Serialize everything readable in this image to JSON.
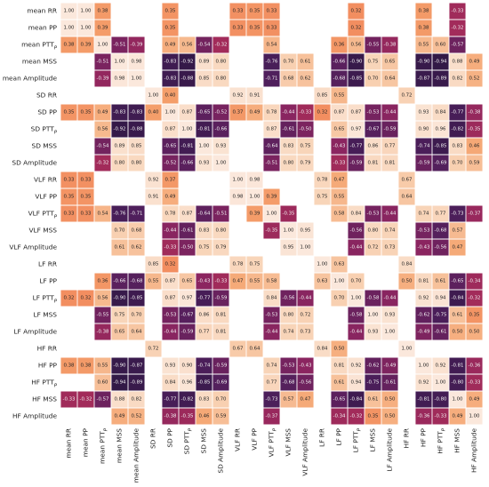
{
  "chart_data": {
    "type": "heatmap",
    "title": "",
    "xlabel": "",
    "ylabel": "",
    "labels": [
      "mean RR",
      "mean PP",
      "mean PTT_P",
      "mean MSS",
      "mean Amplitude",
      "SD RR",
      "SD PP",
      "SD PTT_P",
      "SD MSS",
      "SD Amplitude",
      "VLF RR",
      "VLF PP",
      "VLF PTT_P",
      "VLF MSS",
      "VLF Amplitude",
      "LF RR",
      "LF PP",
      "LF PTT_P",
      "LF MSS",
      "LF Amplitude",
      "HF RR",
      "HF PP",
      "HF PTT_P",
      "HF MSS",
      "HF Amplitude"
    ],
    "values": [
      [
        1.0,
        1.0,
        0.38,
        null,
        null,
        null,
        0.35,
        null,
        null,
        null,
        0.33,
        0.35,
        0.33,
        null,
        null,
        null,
        null,
        0.32,
        null,
        null,
        null,
        0.38,
        null,
        -0.33,
        null
      ],
      [
        1.0,
        1.0,
        0.39,
        null,
        null,
        null,
        0.35,
        null,
        null,
        null,
        0.33,
        0.35,
        0.33,
        null,
        null,
        null,
        null,
        0.32,
        null,
        null,
        null,
        0.38,
        null,
        -0.32,
        null
      ],
      [
        0.38,
        0.39,
        1.0,
        -0.51,
        -0.39,
        null,
        0.49,
        0.56,
        -0.54,
        -0.32,
        null,
        null,
        0.54,
        null,
        null,
        null,
        0.36,
        0.56,
        -0.55,
        -0.38,
        null,
        0.55,
        0.6,
        -0.57,
        null
      ],
      [
        null,
        null,
        -0.51,
        1.0,
        0.98,
        null,
        -0.83,
        -0.92,
        0.89,
        0.8,
        null,
        null,
        -0.76,
        0.7,
        0.61,
        null,
        -0.66,
        -0.9,
        0.75,
        0.65,
        null,
        -0.9,
        -0.94,
        0.88,
        0.49
      ],
      [
        null,
        null,
        -0.39,
        0.98,
        1.0,
        null,
        -0.83,
        -0.88,
        0.85,
        0.8,
        null,
        null,
        -0.71,
        0.68,
        0.62,
        null,
        -0.68,
        -0.85,
        0.7,
        0.64,
        null,
        -0.87,
        -0.89,
        0.82,
        0.52
      ],
      [
        null,
        null,
        null,
        null,
        null,
        1.0,
        0.4,
        null,
        null,
        null,
        0.92,
        0.91,
        null,
        null,
        null,
        0.85,
        0.55,
        null,
        null,
        null,
        0.72,
        null,
        null,
        null,
        null
      ],
      [
        0.35,
        0.35,
        0.49,
        -0.83,
        -0.83,
        0.4,
        1.0,
        0.87,
        -0.65,
        -0.52,
        0.37,
        0.49,
        0.78,
        -0.44,
        -0.33,
        0.32,
        0.87,
        0.87,
        -0.53,
        -0.44,
        null,
        0.93,
        0.84,
        -0.77,
        -0.38
      ],
      [
        null,
        null,
        0.56,
        -0.92,
        -0.88,
        null,
        0.87,
        1.0,
        -0.81,
        -0.66,
        null,
        null,
        0.87,
        -0.61,
        -0.5,
        null,
        0.65,
        0.97,
        -0.67,
        -0.59,
        null,
        0.9,
        0.96,
        -0.82,
        -0.35
      ],
      [
        null,
        null,
        -0.54,
        0.89,
        0.85,
        null,
        -0.65,
        -0.81,
        1.0,
        0.93,
        null,
        null,
        -0.64,
        0.83,
        0.75,
        null,
        -0.43,
        -0.77,
        0.86,
        0.77,
        null,
        -0.74,
        -0.85,
        0.83,
        0.46
      ],
      [
        null,
        null,
        -0.32,
        0.8,
        0.8,
        null,
        -0.52,
        -0.66,
        0.93,
        1.0,
        null,
        null,
        -0.51,
        0.8,
        0.79,
        null,
        -0.33,
        -0.59,
        0.81,
        0.81,
        null,
        -0.59,
        -0.69,
        0.7,
        0.59
      ],
      [
        0.33,
        0.33,
        null,
        null,
        null,
        0.92,
        0.37,
        null,
        null,
        null,
        1.0,
        0.98,
        null,
        null,
        null,
        0.78,
        0.47,
        null,
        null,
        null,
        0.67,
        null,
        null,
        null,
        null
      ],
      [
        0.35,
        0.35,
        null,
        null,
        null,
        0.91,
        0.49,
        null,
        null,
        null,
        0.98,
        1.0,
        0.39,
        null,
        null,
        0.75,
        0.55,
        null,
        null,
        null,
        0.64,
        null,
        null,
        null,
        null
      ],
      [
        0.33,
        0.33,
        0.54,
        -0.76,
        -0.71,
        null,
        0.78,
        0.87,
        -0.64,
        -0.51,
        null,
        0.39,
        1.0,
        -0.35,
        null,
        null,
        0.58,
        0.84,
        -0.53,
        -0.44,
        null,
        0.74,
        0.77,
        -0.73,
        -0.37
      ],
      [
        null,
        null,
        null,
        0.7,
        0.68,
        null,
        -0.44,
        -0.61,
        0.83,
        0.8,
        null,
        null,
        -0.35,
        1.0,
        0.95,
        null,
        null,
        -0.56,
        0.8,
        0.74,
        null,
        -0.53,
        -0.68,
        0.57,
        null
      ],
      [
        null,
        null,
        null,
        0.61,
        0.62,
        null,
        -0.33,
        -0.5,
        0.75,
        0.79,
        null,
        null,
        null,
        0.95,
        1.0,
        null,
        null,
        -0.44,
        0.72,
        0.73,
        null,
        -0.43,
        -0.56,
        0.47,
        null
      ],
      [
        null,
        null,
        null,
        null,
        null,
        0.85,
        0.32,
        null,
        null,
        null,
        0.78,
        0.75,
        null,
        null,
        null,
        1.0,
        0.63,
        null,
        null,
        null,
        0.84,
        null,
        null,
        null,
        null
      ],
      [
        null,
        null,
        0.36,
        -0.66,
        -0.68,
        0.55,
        0.87,
        0.65,
        -0.43,
        -0.33,
        0.47,
        0.55,
        0.58,
        null,
        null,
        0.63,
        1.0,
        0.7,
        null,
        null,
        0.5,
        0.81,
        0.61,
        -0.65,
        -0.34
      ],
      [
        0.32,
        0.32,
        0.56,
        -0.9,
        -0.85,
        null,
        0.87,
        0.97,
        -0.77,
        -0.59,
        null,
        null,
        0.84,
        -0.56,
        -0.44,
        null,
        0.7,
        1.0,
        -0.58,
        -0.44,
        null,
        0.92,
        0.94,
        -0.84,
        -0.32
      ],
      [
        null,
        null,
        -0.55,
        0.75,
        0.7,
        null,
        -0.53,
        -0.67,
        0.86,
        0.81,
        null,
        null,
        -0.53,
        0.8,
        0.72,
        null,
        null,
        -0.58,
        1.0,
        0.93,
        null,
        -0.62,
        -0.75,
        0.61,
        0.35
      ],
      [
        null,
        null,
        -0.38,
        0.65,
        0.64,
        null,
        -0.44,
        -0.59,
        0.77,
        0.81,
        null,
        null,
        -0.44,
        0.74,
        0.73,
        null,
        null,
        -0.44,
        0.93,
        1.0,
        null,
        -0.49,
        -0.61,
        0.5,
        0.5
      ],
      [
        null,
        null,
        null,
        null,
        null,
        0.72,
        null,
        null,
        null,
        null,
        0.67,
        0.64,
        null,
        null,
        null,
        0.84,
        0.5,
        null,
        null,
        null,
        1.0,
        null,
        null,
        null,
        null
      ],
      [
        0.38,
        0.38,
        0.55,
        -0.9,
        -0.87,
        null,
        0.93,
        0.9,
        -0.74,
        -0.59,
        null,
        null,
        0.74,
        -0.53,
        -0.43,
        null,
        0.81,
        0.92,
        -0.62,
        -0.49,
        null,
        1.0,
        0.92,
        -0.81,
        -0.36
      ],
      [
        null,
        null,
        0.6,
        -0.94,
        -0.89,
        null,
        0.84,
        0.96,
        -0.85,
        -0.69,
        null,
        null,
        0.77,
        -0.68,
        -0.56,
        null,
        0.61,
        0.94,
        -0.75,
        -0.61,
        null,
        0.92,
        1.0,
        -0.8,
        -0.33
      ],
      [
        -0.33,
        -0.32,
        -0.57,
        0.88,
        0.82,
        null,
        -0.77,
        -0.82,
        0.83,
        0.7,
        null,
        null,
        -0.73,
        0.57,
        0.47,
        null,
        -0.65,
        -0.84,
        0.61,
        0.5,
        null,
        -0.81,
        -0.8,
        1.0,
        0.49
      ],
      [
        null,
        null,
        null,
        0.49,
        0.52,
        null,
        -0.38,
        -0.35,
        0.46,
        0.59,
        null,
        null,
        -0.37,
        null,
        null,
        null,
        -0.34,
        -0.32,
        0.35,
        0.5,
        null,
        -0.36,
        -0.33,
        0.49,
        1.0
      ]
    ],
    "value_format": "two-decimals",
    "blank_threshold": 0.3,
    "colormap": {
      "name": "rocket-diverging",
      "range": [
        -1,
        1
      ],
      "stops": [
        "#2a1740",
        "#4e1f5c",
        "#8b2560",
        "#c8364f",
        "#ec6d4a",
        "#f5a36e",
        "#f8d2b4",
        "#fbe8dc"
      ]
    },
    "grid": true,
    "legend": "none",
    "group_dividers": "white"
  }
}
